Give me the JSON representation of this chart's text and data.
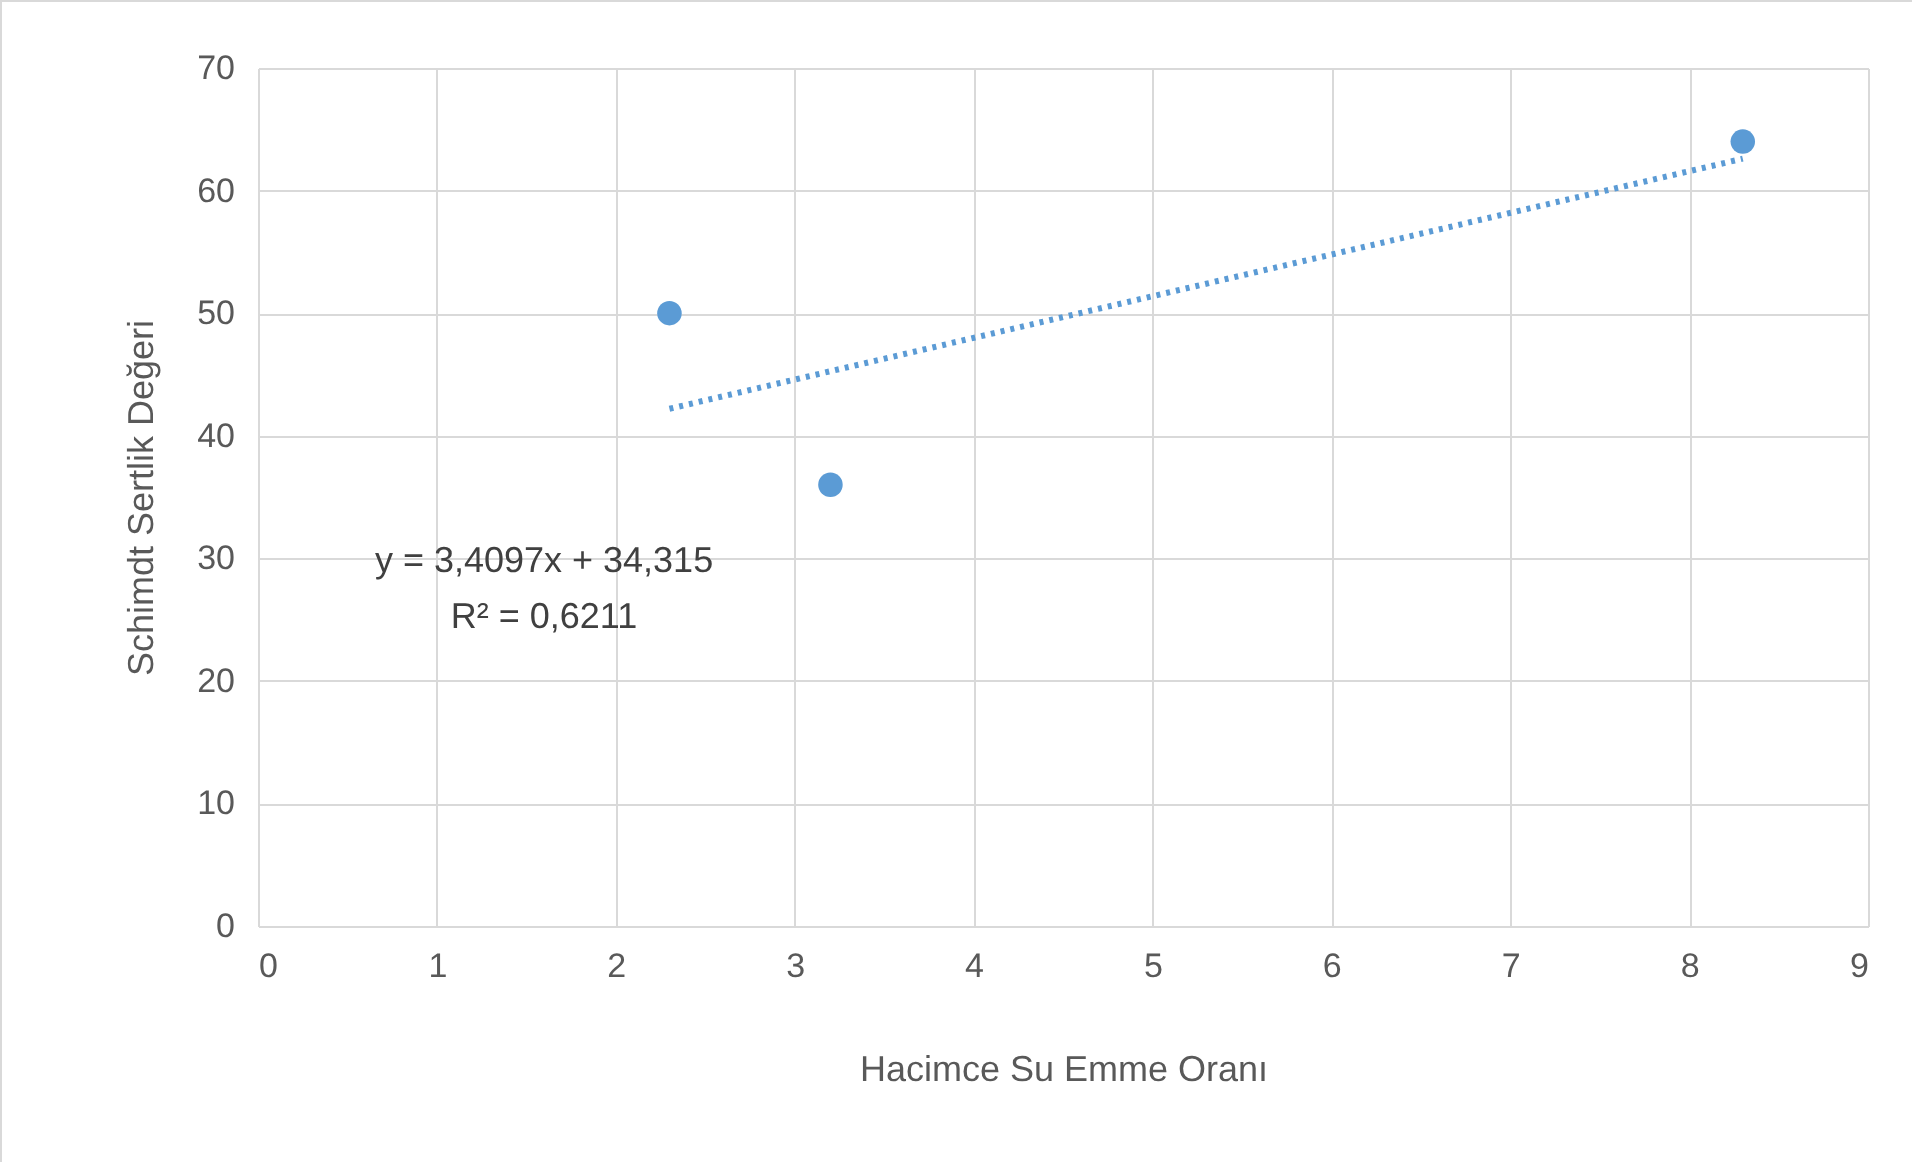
{
  "chart_data": {
    "type": "scatter",
    "xlabel": "Hacimce Su Emme Oranı",
    "ylabel": "Schimdt Sertlik Değeri",
    "xlim": [
      0,
      9
    ],
    "xticks": [
      0,
      1,
      2,
      3,
      4,
      5,
      6,
      7,
      8,
      9
    ],
    "ylim": [
      0,
      70
    ],
    "yticks": [
      0,
      10,
      20,
      30,
      40,
      50,
      60,
      70
    ],
    "grid": true,
    "series": [
      {
        "color": "#5b9bd5",
        "marker": "circle",
        "x": [
          2.3,
          3.2,
          8.3
        ],
        "values": [
          50,
          36,
          64
        ]
      },
      {
        "type": "line",
        "color": "#5b9bd5",
        "line_style": "dotted",
        "x": [
          2.3,
          8.3
        ],
        "values": [
          42.2,
          62.6
        ]
      }
    ],
    "annotations": [
      "y = 3,4097x + 34,315",
      "R² = 0,6211"
    ]
  }
}
